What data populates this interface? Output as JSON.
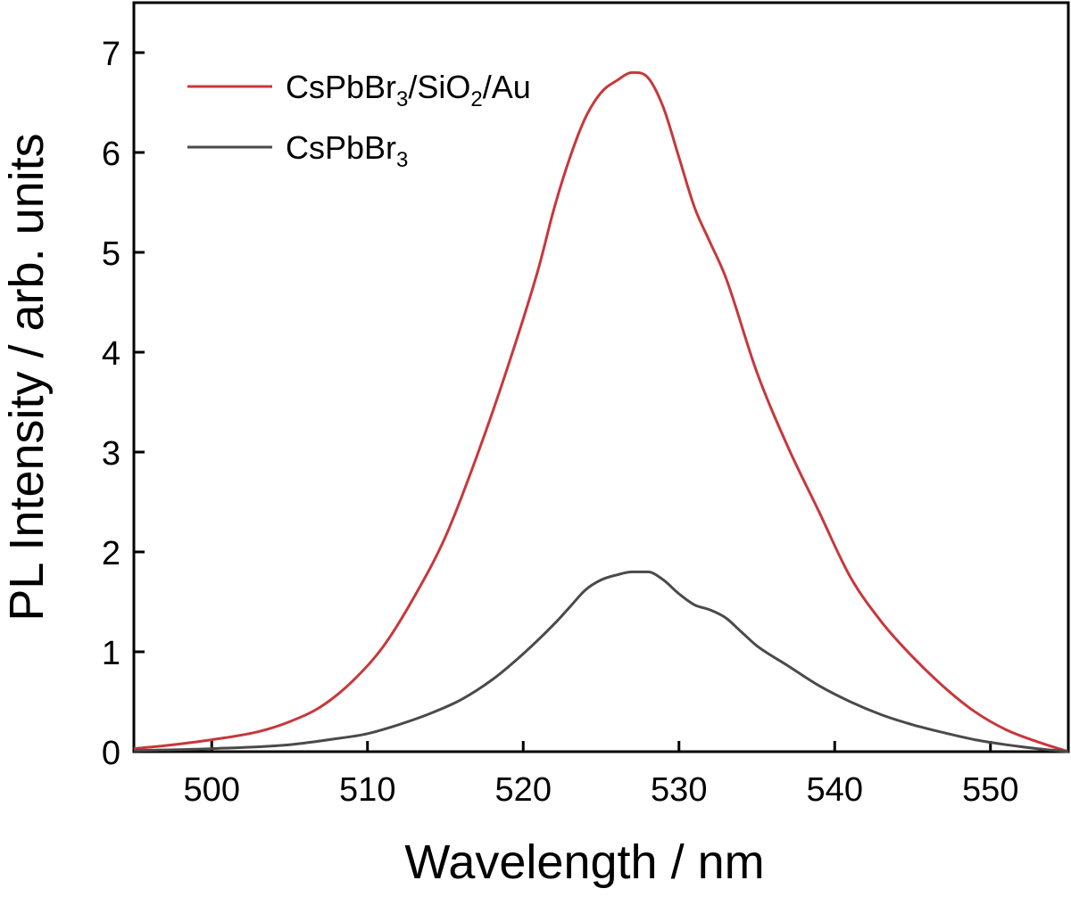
{
  "chart_data": {
    "type": "line",
    "xlabel": "Wavelength / nm",
    "ylabel": "PL Intensity / arb. units",
    "xlim": [
      495,
      555
    ],
    "ylim": [
      0,
      7.5
    ],
    "xticks": [
      500,
      510,
      520,
      530,
      540,
      550
    ],
    "yticks": [
      0,
      1,
      2,
      3,
      4,
      5,
      6,
      7
    ],
    "grid": false,
    "legend_position": "top-left",
    "series": [
      {
        "name_parts": [
          {
            "text": "CsPbBr",
            "sub": false
          },
          {
            "text": "3",
            "sub": true
          },
          {
            "text": "/SiO",
            "sub": false
          },
          {
            "text": "2",
            "sub": true
          },
          {
            "text": "/Au",
            "sub": false
          }
        ],
        "color": "#c8373b",
        "x": [
          495,
          497,
          500,
          503,
          505,
          507,
          509,
          511,
          513,
          515,
          517,
          519,
          521,
          522,
          523,
          524,
          525,
          526,
          527,
          528,
          529,
          530,
          531,
          532,
          533,
          535,
          537,
          539,
          541,
          543,
          545,
          547,
          549,
          551,
          553,
          555
        ],
        "y": [
          0.03,
          0.06,
          0.12,
          0.2,
          0.3,
          0.45,
          0.7,
          1.05,
          1.55,
          2.15,
          2.95,
          3.85,
          4.85,
          5.45,
          5.95,
          6.35,
          6.6,
          6.72,
          6.8,
          6.75,
          6.45,
          5.95,
          5.45,
          5.1,
          4.75,
          3.8,
          3.05,
          2.4,
          1.75,
          1.3,
          0.95,
          0.65,
          0.4,
          0.22,
          0.1,
          0.0
        ]
      },
      {
        "name_parts": [
          {
            "text": "CsPbBr",
            "sub": false
          },
          {
            "text": "3",
            "sub": true
          }
        ],
        "color": "#4a4a4a",
        "x": [
          495,
          500,
          505,
          508,
          510,
          512,
          514,
          516,
          518,
          520,
          522,
          523,
          524,
          525,
          526,
          527,
          528,
          529,
          530,
          531,
          532,
          533,
          534,
          535,
          537,
          539,
          541,
          543,
          545,
          547,
          549,
          551,
          553,
          555
        ],
        "y": [
          0.01,
          0.03,
          0.07,
          0.13,
          0.18,
          0.27,
          0.38,
          0.52,
          0.72,
          0.98,
          1.28,
          1.45,
          1.62,
          1.72,
          1.77,
          1.8,
          1.8,
          1.72,
          1.58,
          1.47,
          1.42,
          1.34,
          1.2,
          1.06,
          0.86,
          0.66,
          0.5,
          0.37,
          0.27,
          0.19,
          0.12,
          0.07,
          0.03,
          0.0
        ]
      }
    ]
  }
}
